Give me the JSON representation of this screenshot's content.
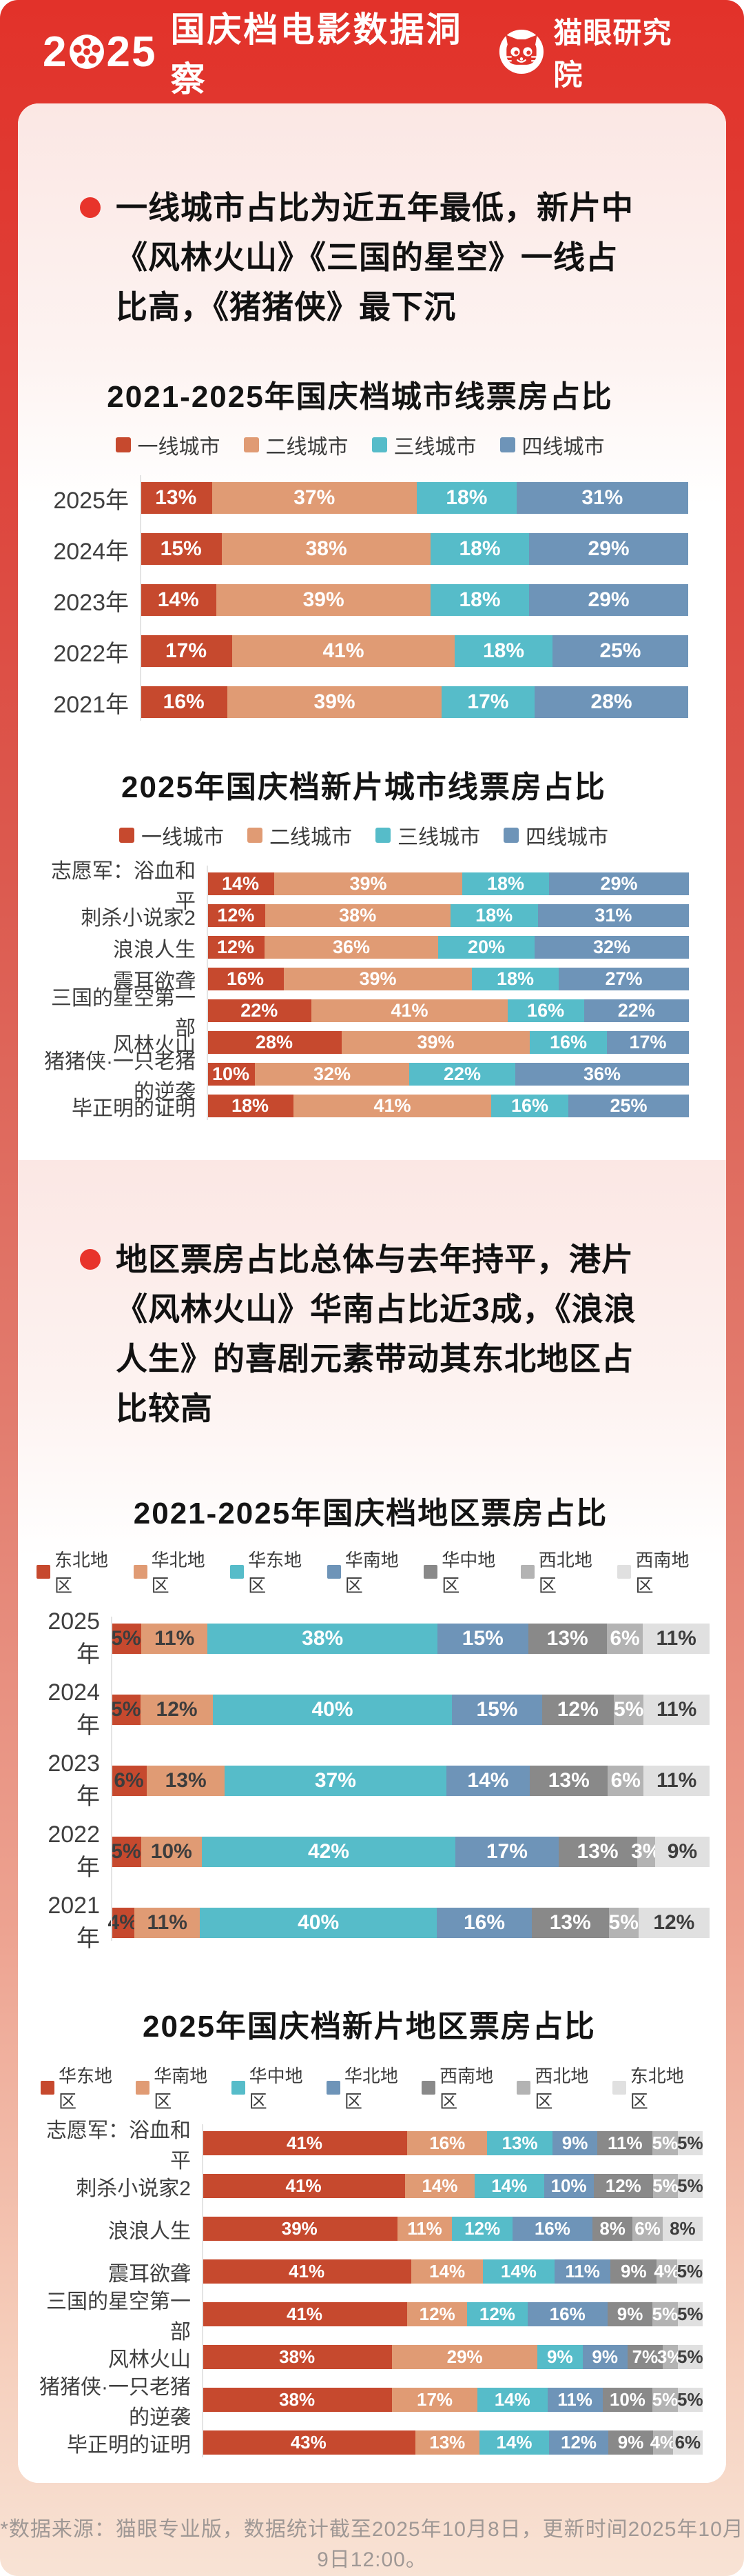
{
  "header": {
    "year_before_reel": "2",
    "year_after_reel": "25",
    "title": "国庆档电影数据洞察",
    "brand": "猫眼研究院"
  },
  "sections": [
    {
      "bullet": "一线城市占比为近五年最低，新片中《风林火山》《三国的星空》一线占比高，《猪猪侠》最下沉"
    },
    {
      "bullet": "地区票房占比总体与去年持平，港片《风林火山》华南占比近3成，《浪浪人生》的喜剧元素带动其东北地区占比较高"
    }
  ],
  "palette": {
    "header_red": "#e0332a",
    "bullet_red": "#e8342b",
    "tier1_red": "#c6492e",
    "tier2_salmon": "#e09b74",
    "tier3_teal": "#56bcc9",
    "tier4_blue": "#6e94b8",
    "gray_dark": "#898989",
    "gray_mid": "#b3b3b3",
    "gray_light": "#e0e0e0",
    "card_bg": "#ffffff",
    "section_tint": "#fbe7e4"
  },
  "footer": {
    "note": "*数据来源：猫眼专业版，数据统计截至2025年10月8日，更新时间2025年10月9日12:00。"
  },
  "chart_data": [
    {
      "type": "bar",
      "stacked": true,
      "orientation": "horizontal",
      "unit": "%",
      "title": "2021-2025年国庆档城市线票房占比",
      "legend_position": "top-center",
      "categories": [
        "2025年",
        "2024年",
        "2023年",
        "2022年",
        "2021年"
      ],
      "series": [
        {
          "name": "一线城市",
          "color": "#c6492e",
          "label_color": "#ffffff",
          "values": [
            13,
            15,
            14,
            17,
            16
          ]
        },
        {
          "name": "二线城市",
          "color": "#e09b74",
          "label_color": "#ffffff",
          "values": [
            37,
            38,
            39,
            41,
            39
          ]
        },
        {
          "name": "三线城市",
          "color": "#56bcc9",
          "label_color": "#ffffff",
          "values": [
            18,
            18,
            18,
            18,
            17
          ]
        },
        {
          "name": "四线城市",
          "color": "#6e94b8",
          "label_color": "#ffffff",
          "values": [
            31,
            29,
            29,
            25,
            28
          ]
        }
      ]
    },
    {
      "type": "bar",
      "stacked": true,
      "orientation": "horizontal",
      "unit": "%",
      "title": "2025年国庆档新片城市线票房占比",
      "legend_position": "top-center",
      "categories": [
        "志愿军：浴血和平",
        "刺杀小说家2",
        "浪浪人生",
        "震耳欲聋",
        "三国的星空第一部",
        "风林火山",
        "猪猪侠·一只老猪的逆袭",
        "毕正明的证明"
      ],
      "series": [
        {
          "name": "一线城市",
          "color": "#c6492e",
          "label_color": "#ffffff",
          "values": [
            14,
            12,
            12,
            16,
            22,
            28,
            10,
            18
          ]
        },
        {
          "name": "二线城市",
          "color": "#e09b74",
          "label_color": "#ffffff",
          "values": [
            39,
            38,
            36,
            39,
            41,
            39,
            32,
            41
          ]
        },
        {
          "name": "三线城市",
          "color": "#56bcc9",
          "label_color": "#ffffff",
          "values": [
            18,
            18,
            20,
            18,
            16,
            16,
            22,
            16
          ]
        },
        {
          "name": "四线城市",
          "color": "#6e94b8",
          "label_color": "#ffffff",
          "values": [
            29,
            31,
            32,
            27,
            22,
            17,
            36,
            25
          ]
        }
      ]
    },
    {
      "type": "bar",
      "stacked": true,
      "orientation": "horizontal",
      "unit": "%",
      "title": "2021-2025年国庆档地区票房占比",
      "legend_position": "top-center",
      "categories": [
        "2025年",
        "2024年",
        "2023年",
        "2022年",
        "2021年"
      ],
      "series": [
        {
          "name": "东北地区",
          "color": "#c6492e",
          "label_color": "#3d3d3d",
          "values": [
            5,
            5,
            6,
            5,
            4
          ]
        },
        {
          "name": "华北地区",
          "color": "#e09b74",
          "label_color": "#3d3d3d",
          "values": [
            11,
            12,
            13,
            10,
            11
          ]
        },
        {
          "name": "华东地区",
          "color": "#56bcc9",
          "label_color": "#ffffff",
          "values": [
            38,
            40,
            37,
            42,
            40
          ]
        },
        {
          "name": "华南地区",
          "color": "#6e94b8",
          "label_color": "#ffffff",
          "values": [
            15,
            15,
            14,
            17,
            16
          ]
        },
        {
          "name": "华中地区",
          "color": "#898989",
          "label_color": "#ffffff",
          "values": [
            13,
            12,
            13,
            13,
            13
          ]
        },
        {
          "name": "西北地区",
          "color": "#b3b3b3",
          "label_color": "#ffffff",
          "values": [
            6,
            5,
            6,
            3,
            5
          ]
        },
        {
          "name": "西南地区",
          "color": "#e0e0e0",
          "label_color": "#3d3d3d",
          "values": [
            11,
            11,
            11,
            9,
            12
          ]
        }
      ]
    },
    {
      "type": "bar",
      "stacked": true,
      "orientation": "horizontal",
      "unit": "%",
      "title": "2025年国庆档新片地区票房占比",
      "legend_position": "top-center",
      "categories": [
        "志愿军：浴血和平",
        "刺杀小说家2",
        "浪浪人生",
        "震耳欲聋",
        "三国的星空第一部",
        "风林火山",
        "猪猪侠·一只老猪的逆袭",
        "毕正明的证明"
      ],
      "series": [
        {
          "name": "华东地区",
          "color": "#c6492e",
          "label_color": "#ffffff",
          "values": [
            41,
            41,
            39,
            41,
            41,
            38,
            38,
            43
          ]
        },
        {
          "name": "华南地区",
          "color": "#e09b74",
          "label_color": "#ffffff",
          "values": [
            16,
            14,
            11,
            14,
            12,
            29,
            17,
            13
          ]
        },
        {
          "name": "华中地区",
          "color": "#56bcc9",
          "label_color": "#ffffff",
          "values": [
            13,
            14,
            12,
            14,
            12,
            9,
            14,
            14
          ]
        },
        {
          "name": "华北地区",
          "color": "#6e94b8",
          "label_color": "#ffffff",
          "values": [
            9,
            10,
            16,
            11,
            16,
            9,
            11,
            12
          ]
        },
        {
          "name": "西南地区",
          "color": "#898989",
          "label_color": "#ffffff",
          "values": [
            11,
            12,
            8,
            9,
            9,
            7,
            10,
            9
          ]
        },
        {
          "name": "西北地区",
          "color": "#b3b3b3",
          "label_color": "#ffffff",
          "values": [
            5,
            5,
            6,
            4,
            5,
            3,
            5,
            4
          ]
        },
        {
          "name": "东北地区",
          "color": "#e0e0e0",
          "label_color": "#3d3d3d",
          "values": [
            5,
            5,
            8,
            5,
            5,
            5,
            5,
            6
          ]
        }
      ]
    }
  ]
}
